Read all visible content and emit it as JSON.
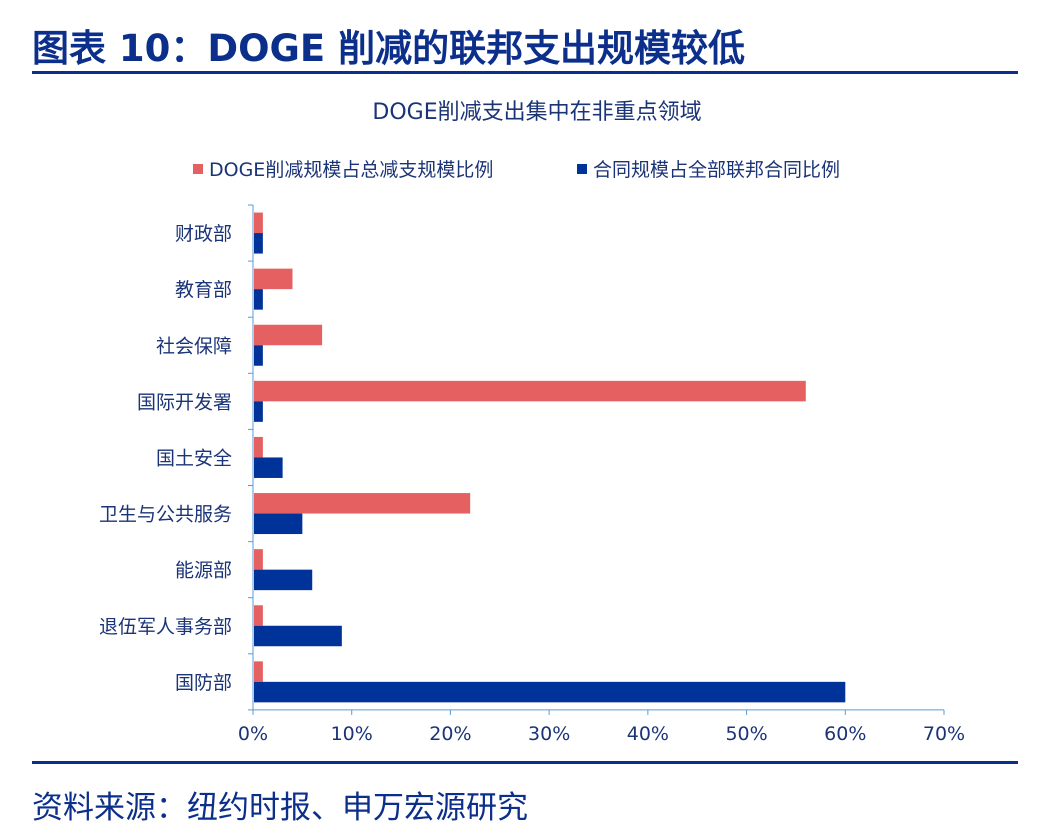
{
  "header": {
    "title": "图表 10：DOGE 削减的联邦支出规模较低"
  },
  "footer": {
    "source": "资料来源：纽约时报、申万宏源研究"
  },
  "chart_data": {
    "type": "bar",
    "orientation": "horizontal",
    "title": "DOGE削减支出集中在非重点领域",
    "categories": [
      "财政部",
      "教育部",
      "社会保障",
      "国际开发署",
      "国土安全",
      "卫生与公共服务",
      "能源部",
      "退伍军人事务部",
      "国防部"
    ],
    "series": [
      {
        "name": "DOGE削减规模占总减支规模比例",
        "color": "#e56060",
        "values": [
          1,
          4,
          7,
          56,
          1,
          22,
          1,
          1,
          1
        ]
      },
      {
        "name": "合同规模占全部联邦合同比例",
        "color": "#003399",
        "values": [
          1,
          1,
          1,
          1,
          3,
          5,
          6,
          9,
          60
        ]
      }
    ],
    "xlim": [
      0,
      70
    ],
    "xticks": [
      "0%",
      "10%",
      "20%",
      "30%",
      "40%",
      "50%",
      "60%",
      "70%"
    ],
    "unit": "%",
    "legend": "top",
    "grid": false
  }
}
